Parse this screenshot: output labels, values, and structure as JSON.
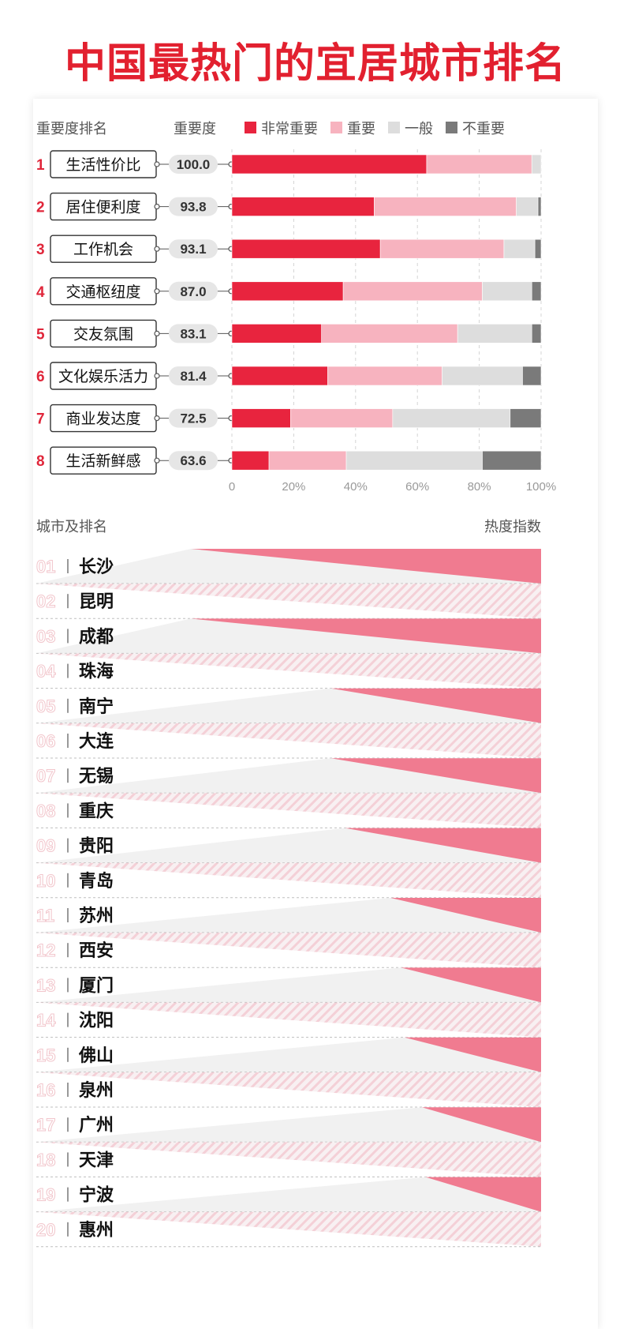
{
  "title": "中国最热门的宜居城市排名",
  "section1": {
    "header_rank": "重要度排名",
    "header_score": "重要度",
    "legend": [
      {
        "label": "非常重要",
        "color": "#e8243e"
      },
      {
        "label": "重要",
        "color": "#f7b3bf"
      },
      {
        "label": "一般",
        "color": "#dddddd"
      },
      {
        "label": "不重要",
        "color": "#7a7a7a"
      }
    ]
  },
  "section2": {
    "header_city": "城市及排名",
    "header_index": "热度指数"
  },
  "chart_data": [
    {
      "type": "bar",
      "orientation": "horizontal",
      "stacked": true,
      "categories": [
        "生活性价比",
        "居住便利度",
        "工作机会",
        "交通枢纽度",
        "交友氛围",
        "文化娱乐活力",
        "商业发达度",
        "生活新鲜感"
      ],
      "ranks": [
        "1",
        "2",
        "3",
        "4",
        "5",
        "6",
        "7",
        "8"
      ],
      "scores": [
        "100.0",
        "93.8",
        "93.1",
        "87.0",
        "83.1",
        "81.4",
        "72.5",
        "63.6"
      ],
      "series": [
        {
          "name": "非常重要",
          "values": [
            63,
            46,
            48,
            36,
            29,
            31,
            19,
            12
          ]
        },
        {
          "name": "重要",
          "values": [
            34,
            46,
            40,
            45,
            44,
            37,
            33,
            25
          ]
        },
        {
          "name": "一般",
          "values": [
            3,
            7,
            10,
            16,
            24,
            26,
            38,
            44
          ]
        },
        {
          "name": "不重要",
          "values": [
            0,
            1,
            2,
            3,
            3,
            6,
            10,
            19
          ]
        }
      ],
      "xlim": [
        0,
        100
      ],
      "xticks": [
        "0",
        "20%",
        "40%",
        "60%",
        "80%",
        "100%"
      ],
      "grid": true,
      "legend_position": "top"
    },
    {
      "type": "bar",
      "orientation": "horizontal",
      "note": "heat index shown only as relative wedge length",
      "categories": [
        "长沙",
        "昆明",
        "成都",
        "珠海",
        "南宁",
        "大连",
        "无锡",
        "重庆",
        "贵阳",
        "青岛",
        "苏州",
        "西安",
        "厦门",
        "沈阳",
        "佛山",
        "泉州",
        "广州",
        "天津",
        "宁波",
        "惠州"
      ],
      "ranks": [
        "01",
        "02",
        "03",
        "04",
        "05",
        "06",
        "07",
        "08",
        "09",
        "10",
        "11",
        "12",
        "13",
        "14",
        "15",
        "16",
        "17",
        "18",
        "19",
        "20"
      ],
      "values": [
        100,
        95,
        100,
        92,
        60,
        58,
        60,
        57,
        56,
        55,
        43,
        42,
        40,
        39,
        39,
        38,
        34,
        33,
        33,
        32
      ],
      "color": "#f07b90"
    }
  ]
}
